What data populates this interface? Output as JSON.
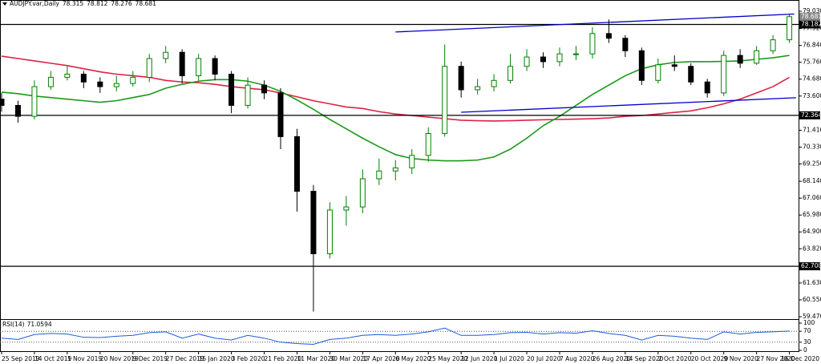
{
  "chart_data": {
    "type": "candlestick",
    "title": "AUDJPY.var,Daily",
    "ohlc": [
      78.315,
      78.812,
      78.276,
      78.681
    ],
    "last_price": 78.681,
    "categories": [
      "25 Sep 2019",
      null,
      "14 Oct 2019",
      null,
      "1 Nov 2019",
      null,
      "20 Nov 2019",
      null,
      "9 Dec 2019",
      null,
      "27 Dec 2019",
      null,
      "15 Jan 2020",
      null,
      "3 Feb 2020",
      null,
      "21 Feb 2020",
      null,
      "11 Mar 2020",
      null,
      "30 Mar 2020",
      null,
      "17 Apr 2020",
      null,
      "6 May 2020",
      null,
      "25 May 2020",
      null,
      "12 Jun 2020",
      null,
      "1 Jul 2020",
      null,
      "20 Jul 2020",
      null,
      "7 Aug 2020",
      null,
      "26 Aug 2020",
      null,
      "14 Sep 2020",
      null,
      "2 Oct 2020",
      null,
      "20 Oct 2020",
      null,
      "9 Nov 2020",
      null,
      "27 Nov 2020",
      null,
      "16 Dec 2020"
    ],
    "open": [
      73.4,
      73.0,
      72.3,
      74.2,
      74.8,
      75.0,
      74.5,
      74.2,
      74.4,
      74.8,
      76.0,
      76.4,
      74.9,
      76.0,
      75.0,
      73.0,
      74.3,
      73.8,
      71.0,
      67.5,
      63.5,
      66.3,
      66.5,
      68.3,
      68.8,
      69.0,
      69.8,
      71.2,
      75.5,
      74.0,
      74.2,
      74.6,
      75.5,
      76.1,
      75.8,
      76.3,
      76.3,
      77.6,
      77.3,
      76.5,
      74.6,
      75.6,
      75.5,
      74.5,
      73.8,
      76.2,
      75.7,
      76.5,
      77.2
    ],
    "high": [
      73.8,
      73.3,
      74.6,
      75.2,
      75.5,
      75.2,
      74.8,
      74.9,
      75.2,
      76.3,
      76.8,
      76.6,
      76.3,
      76.2,
      75.2,
      74.8,
      74.6,
      74.1,
      71.5,
      67.9,
      66.8,
      67.2,
      68.9,
      69.6,
      69.5,
      70.2,
      71.6,
      76.9,
      75.8,
      74.7,
      75.0,
      76.3,
      76.6,
      76.4,
      76.7,
      76.8,
      78.0,
      78.5,
      77.5,
      76.7,
      76.0,
      76.2,
      75.7,
      74.7,
      76.5,
      76.6,
      76.8,
      77.5,
      78.812
    ],
    "low": [
      72.6,
      71.9,
      72.1,
      74.0,
      74.6,
      74.1,
      73.8,
      73.9,
      74.2,
      74.5,
      75.7,
      74.4,
      74.6,
      74.6,
      72.5,
      72.8,
      73.4,
      70.2,
      66.2,
      59.8,
      63.2,
      65.3,
      66.1,
      67.9,
      68.2,
      68.6,
      69.4,
      71.0,
      73.5,
      73.7,
      73.9,
      74.4,
      75.2,
      75.4,
      75.5,
      75.9,
      76.0,
      77.0,
      76.1,
      74.3,
      74.4,
      75.2,
      74.3,
      73.5,
      73.6,
      75.4,
      75.6,
      76.3,
      77.0
    ],
    "close": [
      73.0,
      72.3,
      74.2,
      74.8,
      75.0,
      74.5,
      74.2,
      74.4,
      74.8,
      76.0,
      76.4,
      74.9,
      76.0,
      75.0,
      73.0,
      74.3,
      73.8,
      71.0,
      67.5,
      63.5,
      66.3,
      66.5,
      68.3,
      68.8,
      69.0,
      69.8,
      71.2,
      75.5,
      74.0,
      74.2,
      74.6,
      75.5,
      76.1,
      75.8,
      76.3,
      76.3,
      77.6,
      77.3,
      76.5,
      74.6,
      75.6,
      75.5,
      74.5,
      73.8,
      76.2,
      75.7,
      76.5,
      77.2,
      78.681
    ],
    "up_color": "#008000",
    "down_color": "#000000",
    "series": [
      {
        "color": "#dd2244",
        "values": [
          76.15,
          76.0,
          75.85,
          75.7,
          75.55,
          75.35,
          75.15,
          75.0,
          74.9,
          74.8,
          74.6,
          74.5,
          74.45,
          74.35,
          74.2,
          74.1,
          74.0,
          73.8,
          73.55,
          73.3,
          73.1,
          72.9,
          72.8,
          72.6,
          72.45,
          72.35,
          72.25,
          72.15,
          72.05,
          72.02,
          72.0,
          72.02,
          72.05,
          72.08,
          72.1,
          72.12,
          72.15,
          72.2,
          72.3,
          72.35,
          72.45,
          72.55,
          72.65,
          72.85,
          73.1,
          73.4,
          73.8,
          74.2,
          74.8
        ]
      },
      {
        "color": "#1a9a1a",
        "values": [
          73.85,
          73.75,
          73.6,
          73.5,
          73.4,
          73.3,
          73.2,
          73.3,
          73.5,
          73.7,
          74.1,
          74.35,
          74.55,
          74.65,
          74.65,
          74.55,
          74.3,
          73.9,
          73.35,
          72.75,
          72.1,
          71.5,
          70.9,
          70.35,
          69.85,
          69.6,
          69.5,
          69.45,
          69.45,
          69.5,
          69.7,
          70.2,
          70.9,
          71.7,
          72.3,
          73.0,
          73.7,
          74.3,
          74.9,
          75.35,
          75.6,
          75.75,
          75.8,
          75.8,
          75.82,
          75.85,
          75.95,
          76.05,
          76.2
        ]
      }
    ],
    "trendlines": [
      {
        "color": "#0000cc",
        "from": [
          24,
          77.7
        ],
        "to": [
          48.3,
          78.85
        ]
      },
      {
        "color": "#0000cc",
        "from": [
          28,
          72.56
        ],
        "to": [
          48.4,
          73.49
        ]
      }
    ],
    "levels": [
      78.182,
      72.364,
      {
        "value": 62.7,
        "label": "62.700"
      }
    ],
    "ylim": [
      59.317,
      79.235
    ],
    "yticks": [
      {
        "value": 79.03,
        "label": "79.030"
      },
      {
        "value": 77.92,
        "label": "77.920"
      },
      {
        "value": 76.84,
        "label": "76.840"
      },
      {
        "value": 75.76,
        "label": "75.760"
      },
      {
        "value": 74.68,
        "label": "74.680"
      },
      {
        "value": 73.6,
        "label": "73.600"
      },
      {
        "value": 71.41,
        "label": "71.410"
      },
      {
        "value": 70.33,
        "label": "70.330"
      },
      {
        "value": 69.25,
        "label": "69.250"
      },
      {
        "value": 68.14,
        "label": "68.140"
      },
      {
        "value": 67.06,
        "label": "67.060"
      },
      {
        "value": 65.98,
        "label": "65.980"
      },
      {
        "value": 64.9,
        "label": "64.900"
      },
      {
        "value": 63.82,
        "label": "63.820"
      },
      {
        "value": 61.63,
        "label": "61.630"
      },
      {
        "value": 60.55,
        "label": "60.550"
      },
      {
        "value": 59.47,
        "label": "59.470"
      }
    ],
    "rsi": {
      "title": "RSI(14)",
      "color": "#1e5bd6",
      "values": [
        45,
        40,
        58,
        62,
        60,
        48,
        47,
        52,
        55,
        65,
        68,
        45,
        60,
        45,
        38,
        55,
        45,
        30,
        25,
        22,
        40,
        45,
        55,
        58,
        55,
        60,
        68,
        82,
        55,
        55,
        58,
        65,
        66,
        60,
        65,
        63,
        72,
        62,
        55,
        38,
        55,
        52,
        45,
        40,
        68,
        60,
        66,
        68,
        71.0594
      ],
      "ylim": [
        0,
        100
      ],
      "yticks": [
        100,
        70,
        30,
        0
      ],
      "levels": [
        70,
        30
      ]
    }
  }
}
